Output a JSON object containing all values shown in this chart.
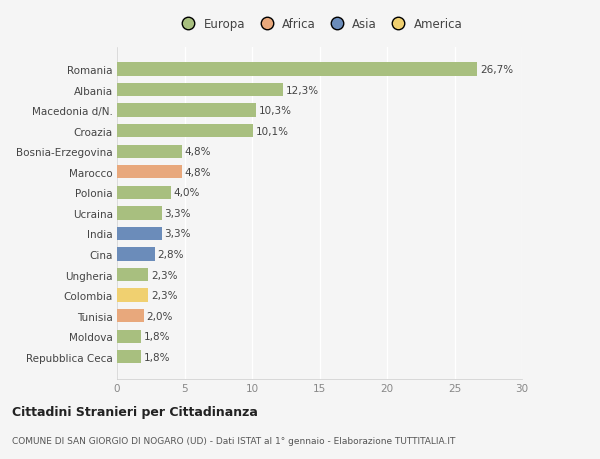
{
  "categories": [
    "Romania",
    "Albania",
    "Macedonia d/N.",
    "Croazia",
    "Bosnia-Erzegovina",
    "Marocco",
    "Polonia",
    "Ucraina",
    "India",
    "Cina",
    "Ungheria",
    "Colombia",
    "Tunisia",
    "Moldova",
    "Repubblica Ceca"
  ],
  "values": [
    26.7,
    12.3,
    10.3,
    10.1,
    4.8,
    4.8,
    4.0,
    3.3,
    3.3,
    2.8,
    2.3,
    2.3,
    2.0,
    1.8,
    1.8
  ],
  "labels": [
    "26,7%",
    "12,3%",
    "10,3%",
    "10,1%",
    "4,8%",
    "4,8%",
    "4,0%",
    "3,3%",
    "3,3%",
    "2,8%",
    "2,3%",
    "2,3%",
    "2,0%",
    "1,8%",
    "1,8%"
  ],
  "colors": [
    "#a8bf7f",
    "#a8bf7f",
    "#a8bf7f",
    "#a8bf7f",
    "#a8bf7f",
    "#e8a87c",
    "#a8bf7f",
    "#a8bf7f",
    "#6b8cba",
    "#6b8cba",
    "#a8bf7f",
    "#f0d070",
    "#e8a87c",
    "#a8bf7f",
    "#a8bf7f"
  ],
  "legend_labels": [
    "Europa",
    "Africa",
    "Asia",
    "America"
  ],
  "legend_colors": [
    "#a8bf7f",
    "#e8a87c",
    "#6b8cba",
    "#f0d070"
  ],
  "xlim": [
    0,
    30
  ],
  "xticks": [
    0,
    5,
    10,
    15,
    20,
    25,
    30
  ],
  "title": "Cittadini Stranieri per Cittadinanza",
  "subtitle": "COMUNE DI SAN GIORGIO DI NOGARO (UD) - Dati ISTAT al 1° gennaio - Elaborazione TUTTITALIA.IT",
  "bg_color": "#f5f5f5",
  "grid_color": "#ffffff",
  "bar_height": 0.65,
  "label_fontsize": 7.5,
  "ytick_fontsize": 7.5,
  "xtick_fontsize": 7.5
}
